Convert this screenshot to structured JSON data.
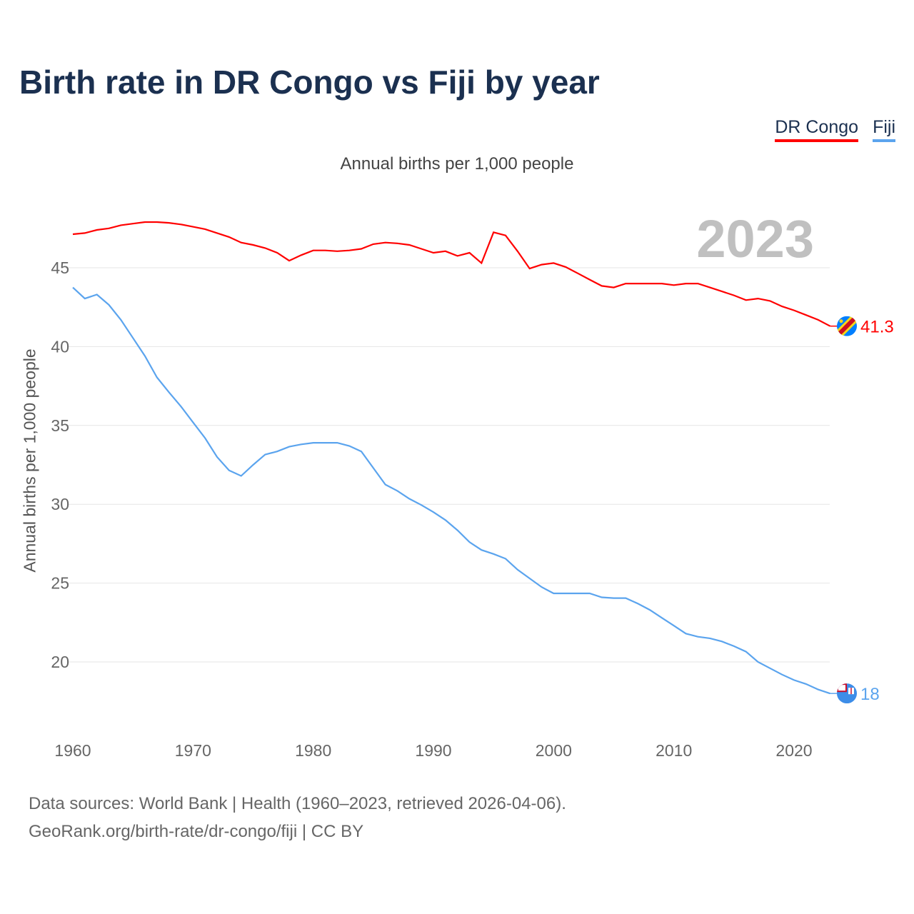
{
  "chart_data": {
    "type": "line",
    "title": "Birth rate in DR Congo vs Fiji by year",
    "subtitle": "Annual births per 1,000 people",
    "ylabel": "Annual births per 1,000 people",
    "xlabel": "",
    "year_label": "2023",
    "xlim": [
      1960,
      2023
    ],
    "ylim": [
      15.3,
      49.3
    ],
    "x_ticks": [
      1960,
      1970,
      1980,
      1990,
      2000,
      2010,
      2020
    ],
    "y_ticks": [
      20,
      25,
      30,
      35,
      40,
      45
    ],
    "grid": true,
    "legend_position": "top-right",
    "x": [
      1960,
      1961,
      1962,
      1963,
      1964,
      1965,
      1966,
      1967,
      1968,
      1969,
      1970,
      1971,
      1972,
      1973,
      1974,
      1975,
      1976,
      1977,
      1978,
      1979,
      1980,
      1981,
      1982,
      1983,
      1984,
      1985,
      1986,
      1987,
      1988,
      1989,
      1990,
      1991,
      1992,
      1993,
      1994,
      1995,
      1996,
      1997,
      1998,
      1999,
      2000,
      2001,
      2002,
      2003,
      2004,
      2005,
      2006,
      2007,
      2008,
      2009,
      2010,
      2011,
      2012,
      2013,
      2014,
      2015,
      2016,
      2017,
      2018,
      2019,
      2020,
      2021,
      2022,
      2023
    ],
    "series": [
      {
        "name": "DR Congo",
        "color": "#ff0000",
        "end_label": "41.3",
        "values": [
          47.13,
          47.2,
          47.4,
          47.5,
          47.7,
          47.8,
          47.9,
          47.9,
          47.85,
          47.75,
          47.6,
          47.45,
          47.2,
          46.95,
          46.6,
          46.45,
          46.25,
          45.95,
          45.45,
          45.8,
          46.1,
          46.1,
          46.05,
          46.1,
          46.2,
          46.5,
          46.6,
          46.55,
          46.45,
          46.2,
          45.95,
          46.05,
          45.75,
          45.95,
          45.3,
          47.25,
          47.05,
          46.05,
          44.95,
          45.2,
          45.3,
          45.05,
          44.65,
          44.25,
          43.85,
          43.75,
          44.0,
          44.0,
          44.0,
          44.0,
          43.9,
          44.0,
          44.0,
          43.75,
          43.5,
          43.25,
          42.95,
          43.05,
          42.9,
          42.55,
          42.3,
          42.0,
          41.7,
          41.3
        ]
      },
      {
        "name": "Fiji",
        "color": "#5ba4ee",
        "end_label": "18",
        "values": [
          43.75,
          43.05,
          43.3,
          42.65,
          41.7,
          40.55,
          39.4,
          38.05,
          37.1,
          36.2,
          35.2,
          34.2,
          33.0,
          32.15,
          31.8,
          32.5,
          33.15,
          33.35,
          33.65,
          33.8,
          33.9,
          33.9,
          33.9,
          33.7,
          33.35,
          32.3,
          31.25,
          30.85,
          30.35,
          29.95,
          29.5,
          29.0,
          28.35,
          27.6,
          27.1,
          26.85,
          26.55,
          25.85,
          25.3,
          24.75,
          24.35,
          24.35,
          24.35,
          24.35,
          24.1,
          24.05,
          24.05,
          23.7,
          23.3,
          22.8,
          22.3,
          21.8,
          21.6,
          21.5,
          21.3,
          21.0,
          20.65,
          20.0,
          19.6,
          19.2,
          18.85,
          18.6,
          18.25,
          18.0
        ]
      }
    ]
  },
  "source": {
    "line1": "Data sources: World Bank | Health (1960–2023, retrieved 2026-04-06).",
    "line2": "GeoRank.org/birth-rate/dr-congo/fiji | CC BY"
  }
}
